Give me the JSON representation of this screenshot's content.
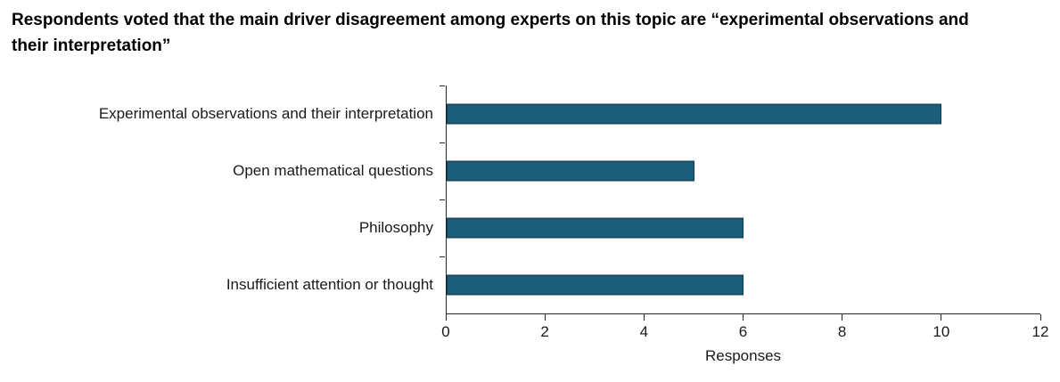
{
  "title": "Respondents voted that the main driver disagreement among experts on this topic are “experimental observations and their interpretation”",
  "chart_data": {
    "type": "bar",
    "orientation": "horizontal",
    "categories": [
      "Experimental observations and their interpretation",
      "Open mathematical questions",
      "Philosophy",
      "Insufficient attention or thought"
    ],
    "values": [
      10,
      5,
      6,
      6
    ],
    "title": "Respondents voted that the main driver disagreement among experts on this topic are “experimental observations and their interpretation”",
    "xlabel": "Responses",
    "ylabel": "",
    "xlim": [
      0,
      12
    ],
    "xticks": [
      0,
      2,
      4,
      6,
      8,
      10,
      12
    ],
    "grid": false,
    "legend": false,
    "bar_color": "#1b5e7b",
    "bar_border_color": "#0f3a4e",
    "axis_color": "#262626"
  }
}
